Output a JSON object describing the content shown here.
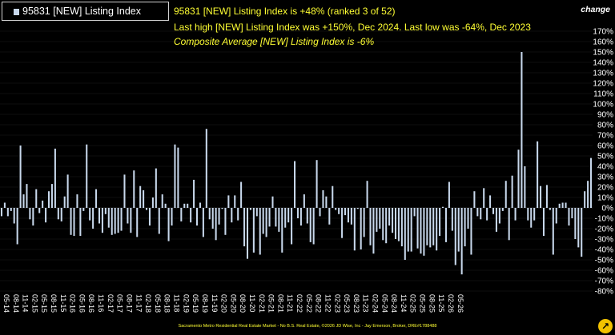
{
  "legend": {
    "label": "95831 [NEW] Listing Index"
  },
  "annotations": {
    "line1": "95831 [NEW] Listing Index is +48% (ranked 3 of 52)",
    "line2": "Last high [NEW] Listing Index was +150%, Dec 2024. Last low was -64%, Dec 2023",
    "line3": "Composite Average [NEW] Listing Index is -6%"
  },
  "change_label": "change",
  "footer": "Sacramento Metro Residential Real Estate Market - No B.S. Real Estate, ©2026 JD Wise, Inc - Jay Emerson, Broker, DRE#1788488",
  "logo_glyph": "↗",
  "colors": {
    "background": "#000000",
    "bar": "#c8d8ec",
    "annotation": "#ffff33",
    "grid": "#1c1c1c",
    "text": "#ffffff"
  },
  "chart_data": {
    "type": "bar",
    "series": [
      {
        "name": "95831 [NEW] Listing Index",
        "values": [
          -8,
          5,
          -8,
          -3,
          -15,
          -35,
          60,
          13,
          23,
          -11,
          -17,
          18,
          -5,
          7,
          -14,
          16,
          23,
          57,
          -11,
          -13,
          11,
          32,
          -26,
          -27,
          13,
          -27,
          -3,
          61,
          -12,
          -20,
          18,
          -15,
          -24,
          -6,
          -19,
          -26,
          -25,
          -24,
          -22,
          32,
          -15,
          -24,
          36,
          -28,
          21,
          17,
          -2,
          -17,
          10,
          38,
          -25,
          13,
          4,
          -32,
          -17,
          61,
          58,
          -13,
          4,
          4,
          -14,
          27,
          -17,
          5,
          -28,
          76,
          -11,
          -20,
          -31,
          -16,
          -1,
          -26,
          12,
          -14,
          12,
          -12,
          25,
          -37,
          -49,
          -2,
          -43,
          -8,
          -45,
          -25,
          -28,
          -18,
          11,
          -18,
          -23,
          -43,
          -19,
          -14,
          -35,
          45,
          -10,
          -17,
          13,
          -15,
          -33,
          -35,
          46,
          -8,
          17,
          11,
          -16,
          21,
          -2,
          -6,
          -29,
          -7,
          -14,
          -16,
          -41,
          -1,
          -40,
          -28,
          26,
          -36,
          -44,
          -23,
          -20,
          -31,
          -34,
          -17,
          -24,
          -30,
          -32,
          -37,
          -50,
          -42,
          -42,
          -8,
          -39,
          -44,
          -46,
          -36,
          -38,
          -36,
          -41,
          -27,
          1,
          -33,
          25,
          -22,
          -55,
          -42,
          -64,
          -37,
          -20,
          -45,
          16,
          -8,
          -11,
          19,
          -12,
          12,
          -6,
          -23,
          -15,
          -3,
          26,
          -31,
          31,
          -12,
          56,
          150,
          40,
          -12,
          -19,
          -12,
          64,
          21,
          -27,
          22,
          -2,
          -45,
          -15,
          4,
          5,
          5,
          -17,
          -10,
          -30,
          -38,
          -47,
          16,
          26,
          48
        ]
      }
    ],
    "x_tick_labels": [
      "05-14",
      "08-14",
      "11-14",
      "02-15",
      "05-15",
      "08-15",
      "11-15",
      "02-16",
      "05-16",
      "08-16",
      "11-16",
      "02-17",
      "05-17",
      "08-17",
      "11-17",
      "02-18",
      "05-18",
      "08-18",
      "11-18",
      "02-19",
      "05-19",
      "08-19",
      "11-19",
      "02-20",
      "05-20",
      "08-20",
      "11-20",
      "02-21",
      "05-21",
      "08-21",
      "11-21",
      "02-22",
      "05-22",
      "08-22",
      "11-22",
      "02-23",
      "05-23",
      "08-23",
      "11-23",
      "02-24",
      "05-24",
      "08-24",
      "11-24",
      "02-25",
      "05-25",
      "08-25",
      "11-25",
      "02-26",
      "05-26"
    ],
    "y_tick_labels": [
      "170%",
      "160%",
      "150%",
      "140%",
      "130%",
      "120%",
      "110%",
      "100%",
      "90%",
      "80%",
      "70%",
      "60%",
      "50%",
      "40%",
      "30%",
      "20%",
      "10%",
      "0%",
      "-10%",
      "-20%",
      "-30%",
      "-40%",
      "-50%",
      "-60%",
      "-70%",
      "-80%"
    ],
    "ylim": [
      -80,
      170
    ],
    "xlabel": "",
    "ylabel": "change",
    "grid": true,
    "legend_position": "top-left"
  }
}
